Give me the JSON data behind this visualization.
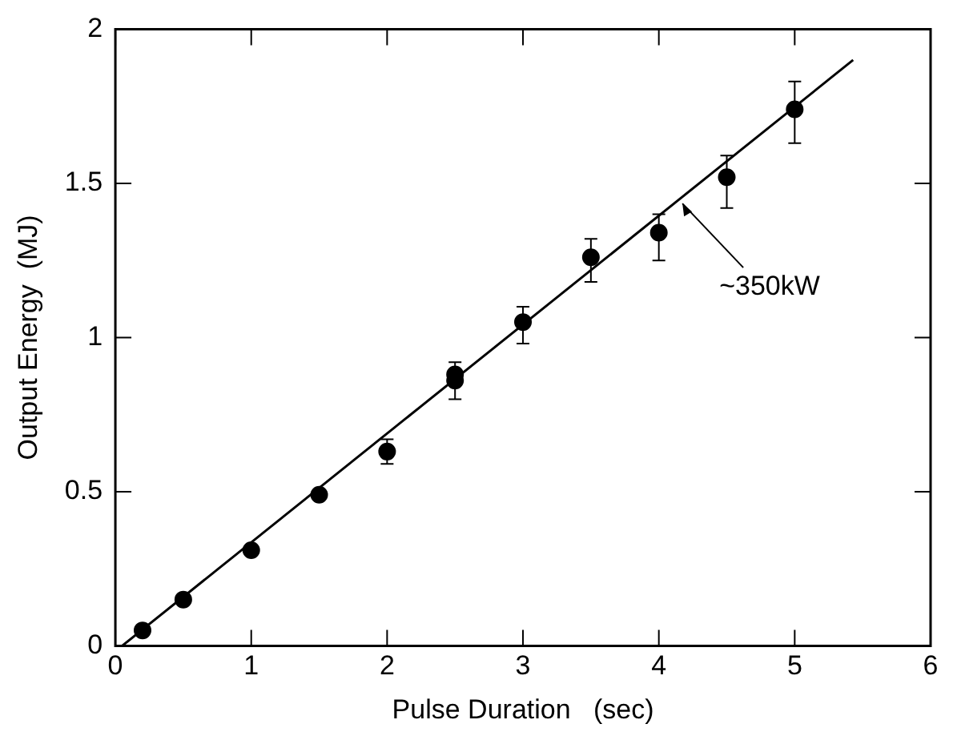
{
  "chart_data": {
    "type": "scatter",
    "xlabel": "Pulse Duration   (sec)",
    "ylabel": "Output Energy  (MJ)",
    "xlim": [
      0,
      6
    ],
    "ylim": [
      0,
      2
    ],
    "xticks": [
      0,
      1,
      2,
      3,
      4,
      5,
      6
    ],
    "yticks": [
      0,
      0.5,
      1,
      1.5,
      2
    ],
    "grid": false,
    "legend": false,
    "series": [
      {
        "marker": "circle",
        "color": "#000000",
        "x": [
          0.2,
          0.5,
          1,
          1.5,
          2,
          2.5,
          2.5,
          3,
          3.5,
          4,
          4.5,
          5
        ],
        "values": [
          0.05,
          0.15,
          0.31,
          0.49,
          0.63,
          0.88,
          0.86,
          1.05,
          1.26,
          1.34,
          1.52,
          1.74
        ],
        "errors": [
          null,
          null,
          null,
          null,
          [
            0.59,
            0.67
          ],
          [
            0.8,
            0.92
          ],
          null,
          [
            0.98,
            1.1
          ],
          [
            1.18,
            1.32
          ],
          [
            1.25,
            1.4
          ],
          [
            1.42,
            1.59
          ],
          [
            1.63,
            1.83
          ]
        ]
      },
      {
        "type": "line",
        "marker": "none",
        "color": "#000000",
        "x": [
          0.05,
          5.43
        ],
        "values": [
          0,
          1.9
        ]
      }
    ],
    "annotations": [
      {
        "text": "~350kW",
        "x": 4.15,
        "y": 1.45
      }
    ]
  }
}
